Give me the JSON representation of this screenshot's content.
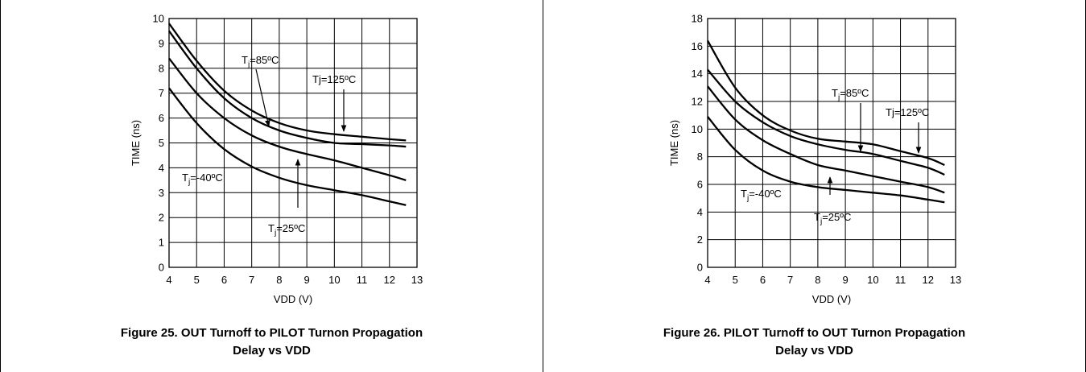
{
  "chart_data": [
    {
      "type": "line",
      "xlabel": "VDD (V)",
      "ylabel": "TIME (ns)",
      "xlim": [
        4,
        13
      ],
      "ylim": [
        0,
        10
      ],
      "x_ticks": [
        4,
        5,
        6,
        7,
        8,
        9,
        10,
        11,
        12,
        13
      ],
      "y_ticks": [
        0,
        1,
        2,
        3,
        4,
        5,
        6,
        7,
        8,
        9,
        10
      ],
      "grid": true,
      "caption_lines": [
        "Figure 25. OUT Turnoff to PILOT Turnon Propagation",
        "Delay vs VDD"
      ],
      "series": [
        {
          "name": "Tj=125ºC",
          "x": [
            4,
            5,
            6,
            7,
            8,
            9,
            10,
            11,
            12,
            12.6
          ],
          "y": [
            9.8,
            8.3,
            7.1,
            6.3,
            5.8,
            5.5,
            5.35,
            5.25,
            5.15,
            5.1
          ]
        },
        {
          "name": "Tj=85ºC",
          "x": [
            4,
            5,
            6,
            7,
            8,
            9,
            10,
            11,
            12,
            12.6
          ],
          "y": [
            9.5,
            8.0,
            6.8,
            6.0,
            5.5,
            5.2,
            5.0,
            4.95,
            4.9,
            4.85
          ]
        },
        {
          "name": "Tj=25ºC",
          "x": [
            4,
            5,
            6,
            7,
            8,
            9,
            10,
            11,
            12,
            12.6
          ],
          "y": [
            8.4,
            7.0,
            6.0,
            5.3,
            4.85,
            4.55,
            4.3,
            4.0,
            3.7,
            3.5
          ]
        },
        {
          "name": "Tj=-40ºC",
          "x": [
            4,
            5,
            6,
            7,
            8,
            9,
            10,
            11,
            12,
            12.6
          ],
          "y": [
            7.2,
            5.8,
            4.75,
            4.05,
            3.6,
            3.3,
            3.1,
            2.9,
            2.65,
            2.5
          ]
        }
      ],
      "annotations": [
        {
          "base": "T",
          "sub": "j",
          "rest": "=85ºC"
        },
        {
          "base": "Tj=125ºC",
          "sub": "",
          "rest": ""
        },
        {
          "base": "T",
          "sub": "j",
          "rest": "=-40ºC"
        },
        {
          "base": "T",
          "sub": "j",
          "rest": "=25ºC"
        }
      ]
    },
    {
      "type": "line",
      "xlabel": "VDD (V)",
      "ylabel": "TIME (ns)",
      "xlim": [
        4,
        13
      ],
      "ylim": [
        0,
        18
      ],
      "x_ticks": [
        4,
        5,
        6,
        7,
        8,
        9,
        10,
        11,
        12,
        13
      ],
      "y_ticks": [
        0,
        2,
        4,
        6,
        8,
        10,
        12,
        14,
        16,
        18
      ],
      "grid": true,
      "caption_lines": [
        "Figure 26. PILOT Turnoff to OUT Turnon Propagation",
        "Delay vs VDD"
      ],
      "series": [
        {
          "name": "Tj=125ºC",
          "x": [
            4,
            5,
            6,
            7,
            8,
            9,
            10,
            11,
            12,
            12.6
          ],
          "y": [
            16.4,
            13.0,
            11.0,
            9.9,
            9.3,
            9.1,
            8.9,
            8.4,
            7.9,
            7.4
          ]
        },
        {
          "name": "Tj=85ºC",
          "x": [
            4,
            5,
            6,
            7,
            8,
            9,
            10,
            11,
            12,
            12.6
          ],
          "y": [
            14.3,
            12.0,
            10.5,
            9.5,
            8.9,
            8.5,
            8.2,
            7.7,
            7.2,
            6.7
          ]
        },
        {
          "name": "Tj=25ºC",
          "x": [
            4,
            5,
            6,
            7,
            8,
            9,
            10,
            11,
            12,
            12.6
          ],
          "y": [
            13.1,
            10.7,
            9.2,
            8.2,
            7.4,
            7.0,
            6.6,
            6.2,
            5.8,
            5.4
          ]
        },
        {
          "name": "Tj=-40ºC",
          "x": [
            4,
            5,
            6,
            7,
            8,
            9,
            10,
            11,
            12,
            12.6
          ],
          "y": [
            10.9,
            8.5,
            7.0,
            6.2,
            5.8,
            5.6,
            5.4,
            5.2,
            4.9,
            4.7
          ]
        }
      ],
      "annotations": [
        {
          "base": "T",
          "sub": "j",
          "rest": "=85ºC"
        },
        {
          "base": "Tj=125ºC",
          "sub": "",
          "rest": ""
        },
        {
          "base": "T",
          "sub": "j",
          "rest": "=-40ºC"
        },
        {
          "base": "T",
          "sub": "j",
          "rest": "=25ºC"
        }
      ]
    }
  ]
}
